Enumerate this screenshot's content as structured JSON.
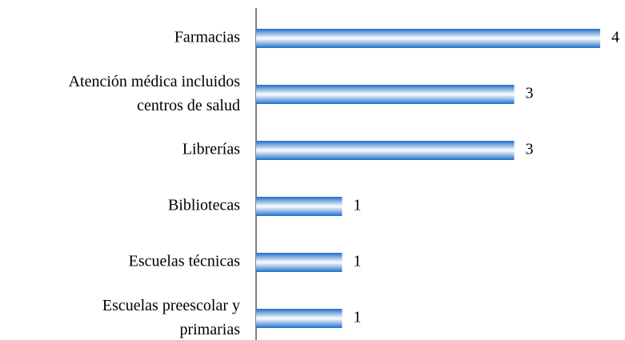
{
  "chart_data": {
    "type": "barh",
    "categories": [
      "Farmacias",
      "Atención médica incluidos centros de salud",
      "Librerías",
      "Bibliotecas",
      "Escuelas técnicas",
      "Escuelas preescolar y primarias"
    ],
    "values": [
      4,
      3,
      3,
      1,
      1,
      1
    ],
    "color": "#1f6fc8"
  }
}
